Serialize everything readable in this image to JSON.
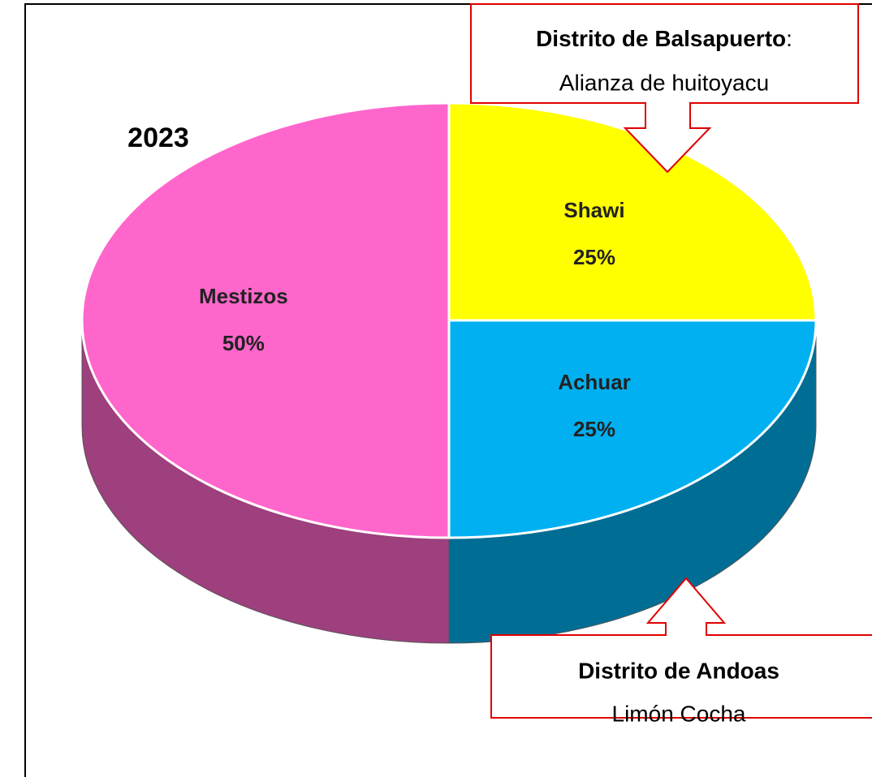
{
  "chart_data": {
    "type": "pie3d",
    "title": "2023",
    "categories": [
      "Shawi",
      "Achuar",
      "Mestizos"
    ],
    "values": [
      25,
      25,
      50
    ],
    "value_labels": [
      "25%",
      "25%",
      "50%"
    ],
    "colors": [
      "#ffff00",
      "#00b0f0",
      "#ff66cc"
    ],
    "annotations": [
      {
        "title": "Distrito de Balsapuerto",
        "title_suffix": ":",
        "text": "Alianza de huitoyacu"
      },
      {
        "title": "Distrito de Andoas",
        "text": "Limón Cocha"
      }
    ]
  }
}
